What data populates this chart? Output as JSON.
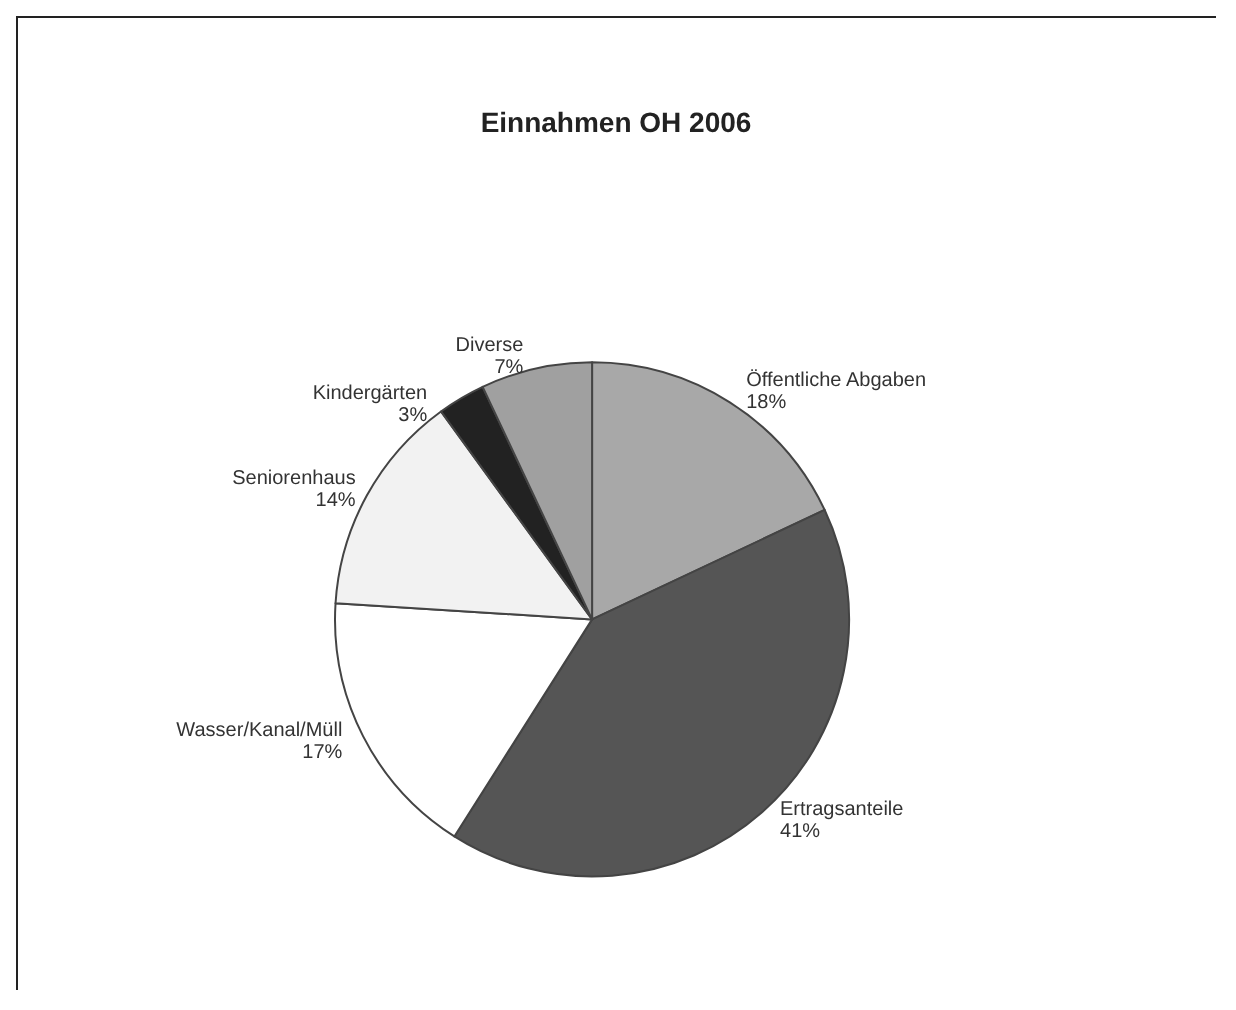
{
  "chart_data": {
    "type": "pie",
    "title": "Einnahmen OH 2006",
    "categories": [
      "Öffentliche Abgaben",
      "Ertragsanteile",
      "Wasser/Kanal/Müll",
      "Seniorenhaus",
      "Kindergärten",
      "Diverse"
    ],
    "values": [
      18,
      41,
      17,
      14,
      3,
      7
    ],
    "value_labels": [
      "18%",
      "41%",
      "17%",
      "14%",
      "3%",
      "7%"
    ],
    "colors": [
      "#a8a8a8",
      "#555555",
      "#ffffff",
      "#f2f2f2",
      "#222222",
      "#a0a0a0"
    ],
    "legend": false
  }
}
